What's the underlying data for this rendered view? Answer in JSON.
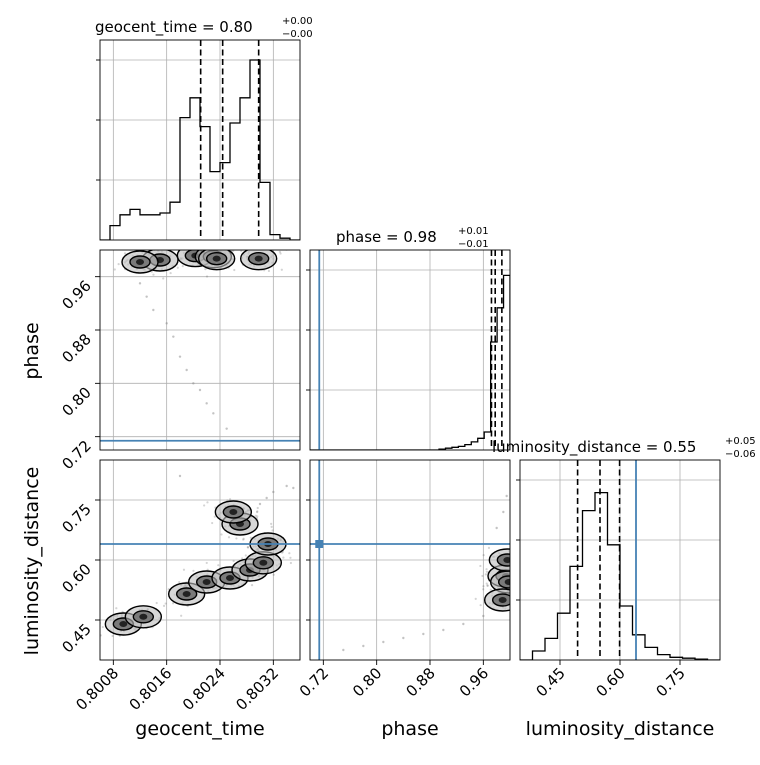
{
  "chart_data": {
    "type": "corner",
    "colors": {
      "truth": "#4682b4",
      "hist": "#000000",
      "grid": "#b0b0b0"
    },
    "parameters": [
      {
        "name": "geocent_time",
        "title_main": "geocent_time = 0.80",
        "title_plus": "+0.00",
        "title_minus": "−0.00",
        "range": [
          0.8006,
          0.8036
        ],
        "ticks": [
          0.8008,
          0.8016,
          0.8024,
          0.8032
        ],
        "tick_labels": [
          "0.8008",
          "0.8016",
          "0.8024",
          "0.8032"
        ],
        "quantiles": [
          0.80211,
          0.80244,
          0.80298
        ],
        "truth": null,
        "hist_max": 1.0,
        "hist_values": [
          0,
          0.08,
          0.14,
          0.17,
          0.14,
          0.14,
          0.15,
          0.21,
          0.68,
          0.79,
          0.63,
          0.38,
          0.43,
          0.65,
          0.79,
          1.0,
          0.32,
          0.03,
          0.01,
          0
        ]
      },
      {
        "name": "phase",
        "title_main": "phase = 0.98",
        "title_plus": "+0.01",
        "title_minus": "−0.01",
        "range": [
          0.7,
          1.0
        ],
        "ticks": [
          0.72,
          0.8,
          0.88,
          0.96
        ],
        "tick_labels": [
          "0.72",
          "0.80",
          "0.88",
          "0.96"
        ],
        "quantiles": [
          0.9722,
          0.9778,
          0.9878
        ],
        "truth": 0.7139,
        "hist_max": 1.0,
        "hist_values": [
          0,
          0,
          0,
          0,
          0,
          0,
          0,
          0,
          0,
          0,
          0,
          0,
          0,
          0,
          0,
          0,
          0,
          0,
          0,
          0,
          0.005,
          0.01,
          0.015,
          0.02,
          0.03,
          0.045,
          0.065,
          0.1,
          0.6,
          0.79,
          0.97
        ]
      },
      {
        "name": "luminosity_distance",
        "title_main": "luminosity_distance = 0.55",
        "title_plus": "+0.05",
        "title_minus": "−0.06",
        "range": [
          0.35,
          0.85
        ],
        "ticks": [
          0.45,
          0.6,
          0.75
        ],
        "tick_labels": [
          "0.45",
          "0.60",
          "0.75"
        ],
        "quantiles": [
          0.494,
          0.55,
          0.599
        ],
        "truth": 0.64,
        "hist_max": 1.0,
        "hist_values": [
          0,
          0.05,
          0.12,
          0.26,
          0.52,
          0.83,
          0.93,
          0.64,
          0.3,
          0.14,
          0.07,
          0.03,
          0.015,
          0.01,
          0.005,
          0
        ]
      }
    ],
    "contours_2d": [
      {
        "x": "geocent_time",
        "y": "phase",
        "density_centers": [
          [
            0.80203,
            0.9916
          ],
          [
            0.8023,
            0.99
          ],
          [
            0.80298,
            0.987
          ],
          [
            0.80235,
            0.987
          ],
          [
            0.8015,
            0.985
          ],
          [
            0.8012,
            0.982
          ]
        ],
        "sparse_points": [
          [
            0.8012,
            0.95
          ],
          [
            0.8013,
            0.93
          ],
          [
            0.8014,
            0.91
          ],
          [
            0.8016,
            0.89
          ],
          [
            0.8017,
            0.87
          ],
          [
            0.8018,
            0.84
          ],
          [
            0.8019,
            0.82
          ],
          [
            0.802,
            0.8
          ],
          [
            0.8021,
            0.79
          ],
          [
            0.8022,
            0.77
          ],
          [
            0.8023,
            0.755
          ],
          [
            0.8025,
            0.732
          ]
        ]
      },
      {
        "x": "geocent_time",
        "y": "luminosity_distance",
        "density_centers": [
          [
            0.80095,
            0.44
          ],
          [
            0.80125,
            0.458
          ],
          [
            0.8019,
            0.515
          ],
          [
            0.8022,
            0.545
          ],
          [
            0.80255,
            0.555
          ],
          [
            0.80285,
            0.575
          ],
          [
            0.80305,
            0.593
          ],
          [
            0.80312,
            0.64
          ],
          [
            0.8027,
            0.69
          ],
          [
            0.8026,
            0.72
          ]
        ],
        "sparse_points": [
          [
            0.80285,
            0.725
          ],
          [
            0.803,
            0.74
          ],
          [
            0.8031,
            0.755
          ],
          [
            0.8032,
            0.77
          ],
          [
            0.8034,
            0.785
          ],
          [
            0.8035,
            0.78
          ],
          [
            0.8018,
            0.81
          ]
        ]
      },
      {
        "x": "phase",
        "y": "luminosity_distance",
        "density_centers": [
          [
            0.994,
            0.56
          ],
          [
            0.998,
            0.545
          ],
          [
            0.996,
            0.6
          ],
          [
            0.989,
            0.5
          ]
        ],
        "sparse_points": [
          [
            0.96,
            0.46
          ],
          [
            0.93,
            0.44
          ],
          [
            0.9,
            0.425
          ],
          [
            0.87,
            0.415
          ],
          [
            0.84,
            0.405
          ],
          [
            0.81,
            0.395
          ],
          [
            0.78,
            0.385
          ],
          [
            0.75,
            0.375
          ],
          [
            0.98,
            0.68
          ],
          [
            0.99,
            0.72
          ],
          [
            0.995,
            0.76
          ]
        ]
      }
    ]
  }
}
